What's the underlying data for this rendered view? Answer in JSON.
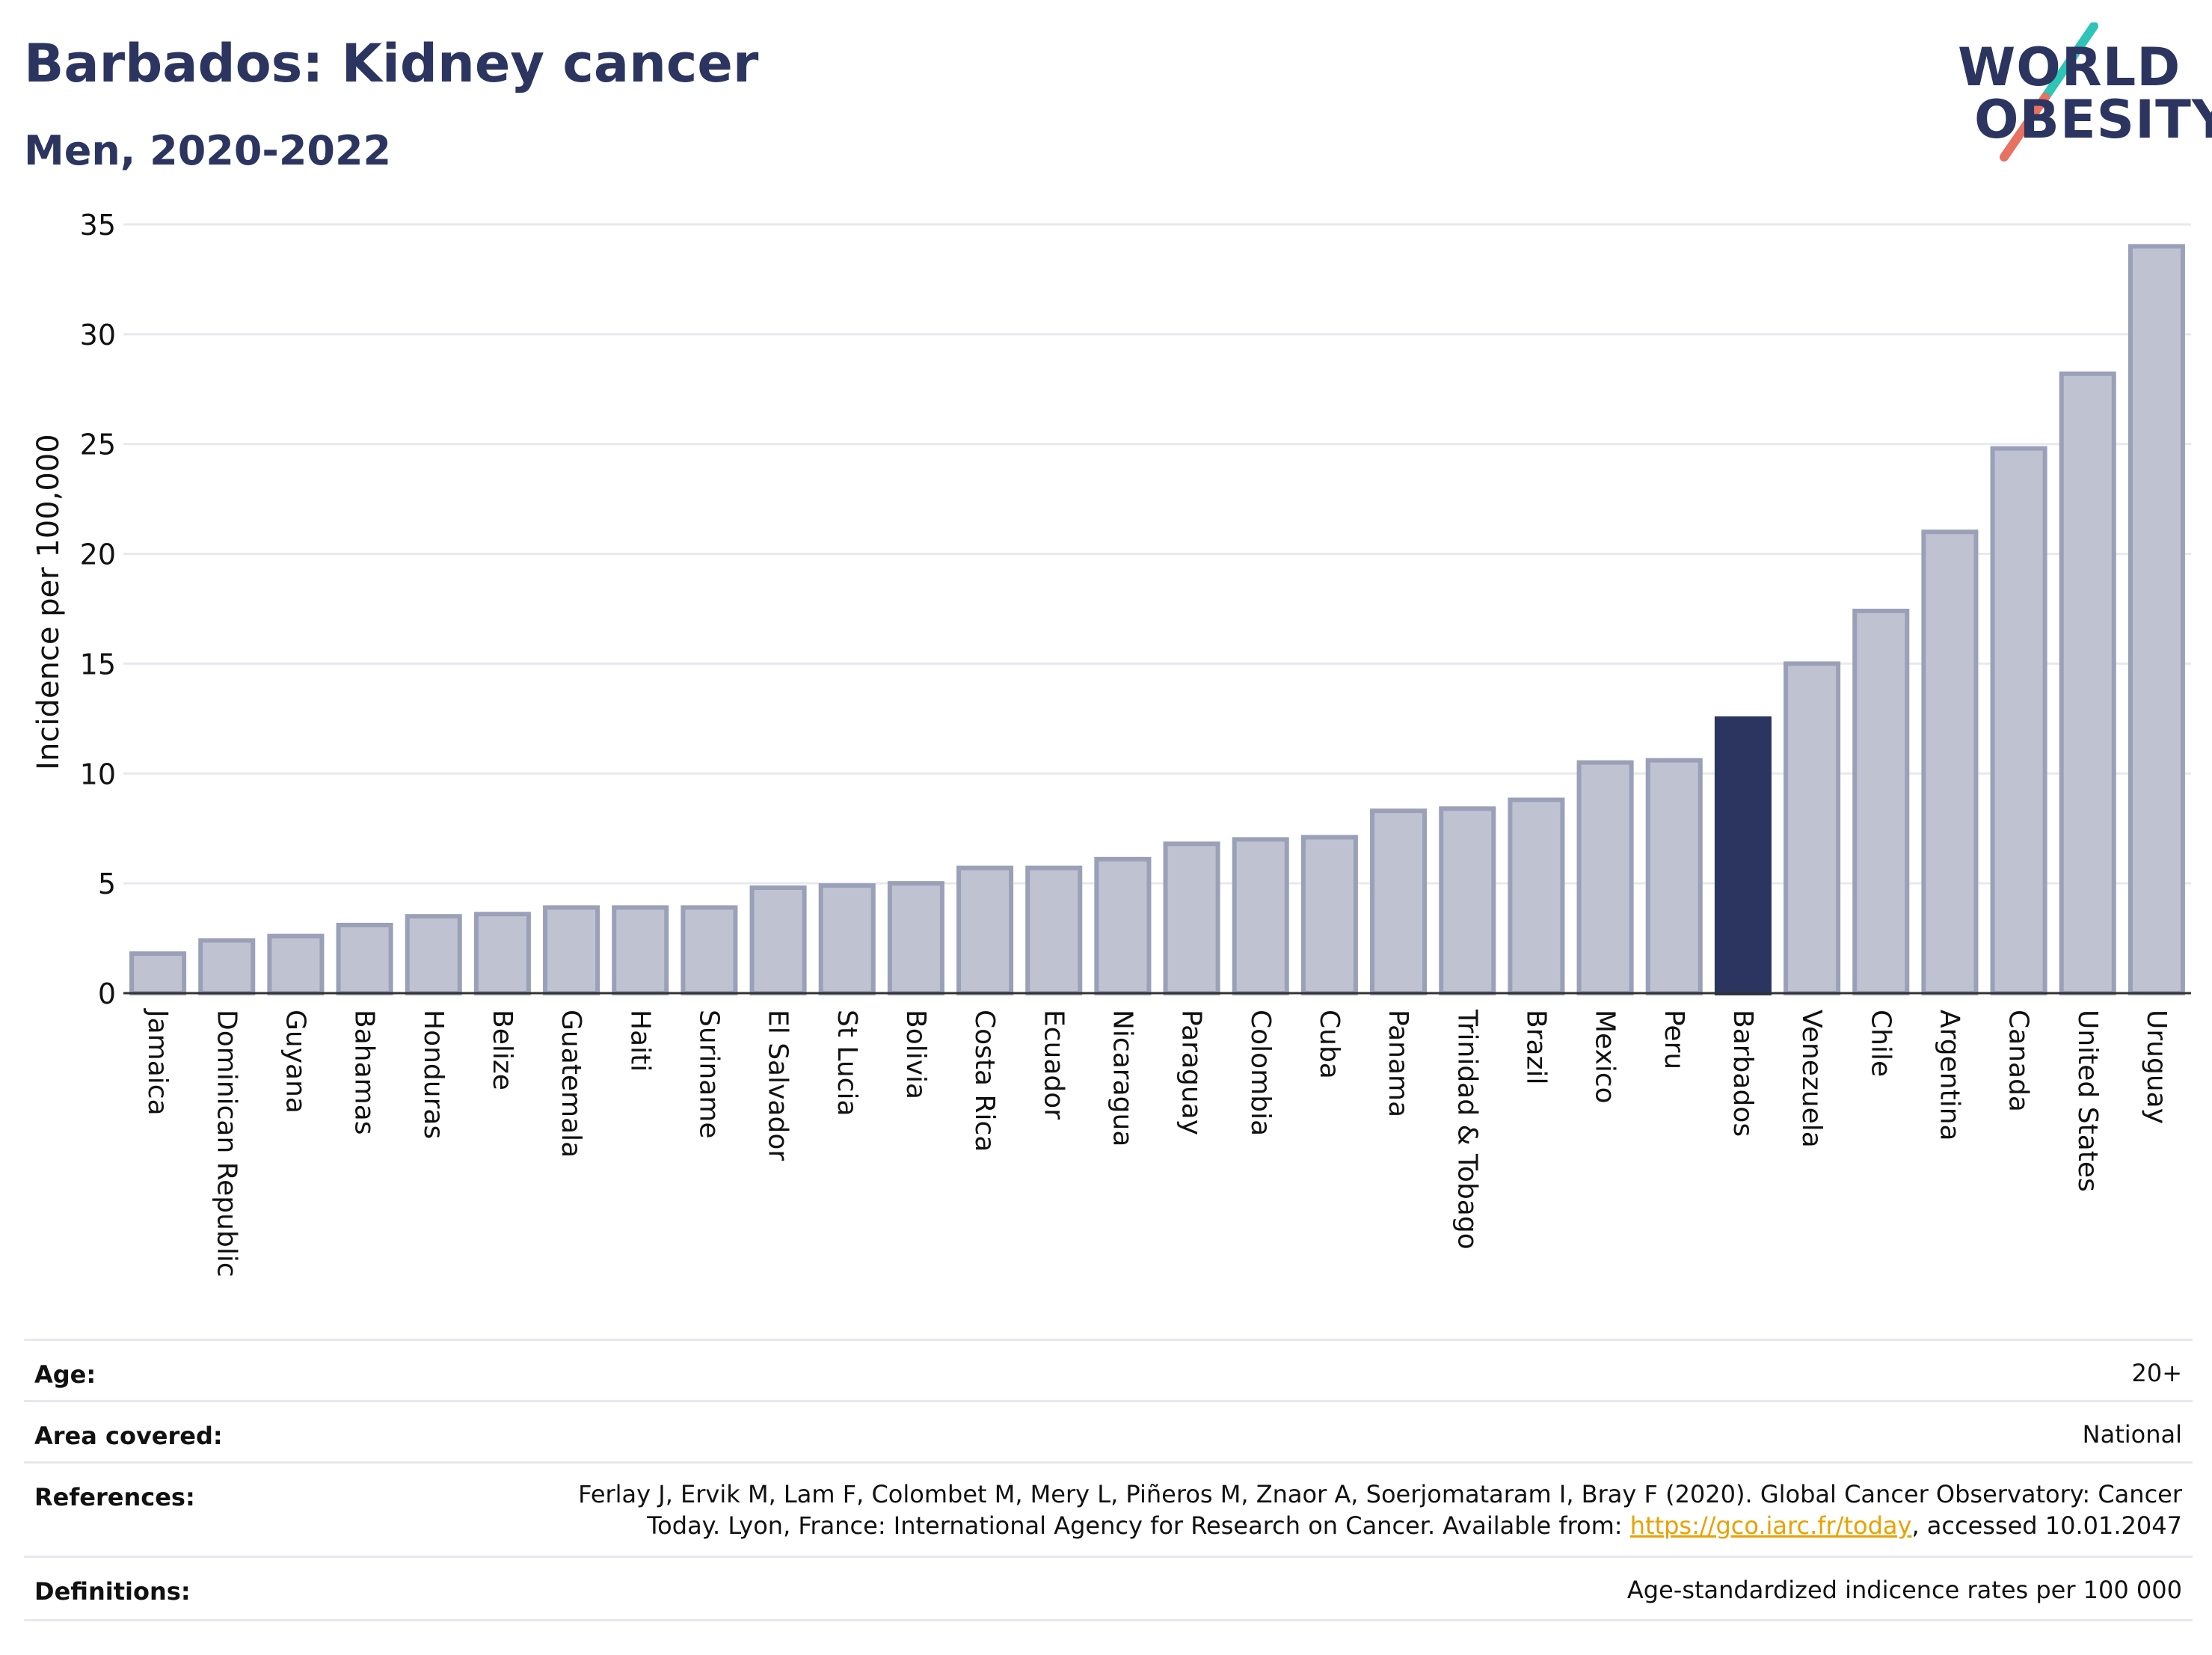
{
  "header": {
    "title": "Barbados: Kidney cancer",
    "subtitle": "Men, 2020-2022"
  },
  "logo": {
    "line1": "WORLD",
    "line2": "OBESITY",
    "accent_colors": [
      "#2ec4b6",
      "#e8715f"
    ]
  },
  "colors": {
    "bar_default": "#bfc3d1",
    "bar_default_stroke": "#9aa0b8",
    "bar_highlight": "#2b3560",
    "title": "#2b3560",
    "link": "#e8a100"
  },
  "chart_data": {
    "type": "bar",
    "ylabel": "Incidence per 100,000",
    "ylim": [
      0,
      35
    ],
    "yticks": [
      0,
      5,
      10,
      15,
      20,
      25,
      30,
      35
    ],
    "grid": true,
    "highlight": "Barbados",
    "categories": [
      "Jamaica",
      "Dominican Republic",
      "Guyana",
      "Bahamas",
      "Honduras",
      "Belize",
      "Guatemala",
      "Haiti",
      "Suriname",
      "El Salvador",
      "St Lucia",
      "Bolivia",
      "Costa Rica",
      "Ecuador",
      "Nicaragua",
      "Paraguay",
      "Colombia",
      "Cuba",
      "Panama",
      "Trinidad & Tobago",
      "Brazil",
      "Mexico",
      "Peru",
      "Barbados",
      "Venezuela",
      "Chile",
      "Argentina",
      "Canada",
      "United States",
      "Uruguay"
    ],
    "values": [
      1.8,
      2.4,
      2.6,
      3.1,
      3.5,
      3.6,
      3.9,
      3.9,
      3.9,
      4.8,
      4.9,
      5.0,
      5.7,
      5.7,
      6.1,
      6.8,
      7.0,
      7.1,
      8.3,
      8.4,
      8.8,
      10.5,
      10.6,
      12.5,
      15.0,
      17.4,
      21.0,
      24.8,
      28.2,
      34.0
    ]
  },
  "info": {
    "age_label": "Age:",
    "age_value": "20+",
    "area_label": "Area covered:",
    "area_value": "National",
    "references_label": "References:",
    "references_line1": "Ferlay J, Ervik M, Lam F, Colombet M, Mery L, Piñeros M, Znaor A, Soerjomataram I, Bray F (2020). Global Cancer Observatory: Cancer",
    "references_line2_pre": "Today. Lyon, France: International Agency for Research on Cancer. Available from: ",
    "references_link": "https://gco.iarc.fr/today",
    "references_line2_post": ", accessed 10.01.2047",
    "definitions_label": "Definitions:",
    "definitions_value": "Age-standardized indicence rates per 100 000"
  }
}
